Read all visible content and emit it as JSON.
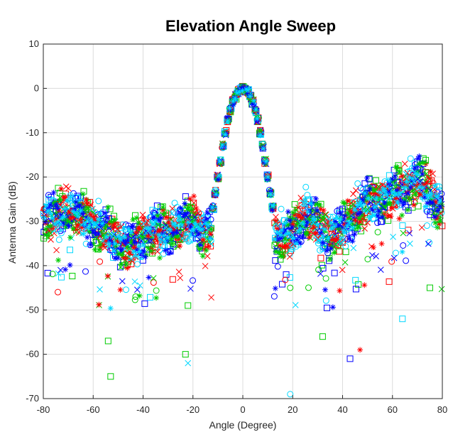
{
  "chart_data": {
    "type": "scatter",
    "title": "Elevation Angle Sweep",
    "xlabel": "Angle (Degree)",
    "ylabel": "Antenna Gain (dB)",
    "xlim": [
      -80,
      80
    ],
    "ylim": [
      -70,
      10
    ],
    "xticks": [
      -80,
      -60,
      -40,
      -20,
      0,
      20,
      40,
      60,
      80
    ],
    "yticks": [
      10,
      0,
      -10,
      -20,
      -30,
      -40,
      -50,
      -60,
      -70
    ],
    "grid": true,
    "legend": "none",
    "main_lobe": {
      "x": [
        -12,
        -10,
        -8,
        -6,
        -4,
        -2,
        0,
        2,
        4,
        6,
        8,
        10,
        12
      ],
      "y": [
        -27,
        -20,
        -13,
        -7,
        -3,
        -0.8,
        0,
        -0.8,
        -3,
        -7,
        -13,
        -20,
        -27
      ]
    },
    "sidelobe_envelope": {
      "x": [
        -80,
        -75,
        -70,
        -65,
        -60,
        -55,
        -50,
        -45,
        -40,
        -35,
        -30,
        -25,
        -20,
        -16,
        16,
        20,
        25,
        30,
        35,
        40,
        45,
        50,
        55,
        60,
        65,
        70,
        75,
        80
      ],
      "y": [
        -27,
        -26,
        -25,
        -26,
        -28,
        -30,
        -32,
        -33,
        -31,
        -29,
        -30,
        -28,
        -27,
        -30,
        -31,
        -30,
        -26,
        -28,
        -31,
        -29,
        -26,
        -23,
        -23,
        -21,
        -20,
        -18,
        -21,
        -25
      ]
    },
    "series": [
      {
        "marker": "square",
        "color": "#ff0000"
      },
      {
        "marker": "square",
        "color": "#00cc00"
      },
      {
        "marker": "square",
        "color": "#0000ff"
      },
      {
        "marker": "square",
        "color": "#00d8ff"
      },
      {
        "marker": "circle",
        "color": "#ff0000"
      },
      {
        "marker": "circle",
        "color": "#00cc00"
      },
      {
        "marker": "circle",
        "color": "#0000ff"
      },
      {
        "marker": "circle",
        "color": "#00d8ff"
      },
      {
        "marker": "x",
        "color": "#ff0000"
      },
      {
        "marker": "x",
        "color": "#00cc00"
      },
      {
        "marker": "x",
        "color": "#0000ff"
      },
      {
        "marker": "x",
        "color": "#00d8ff"
      },
      {
        "marker": "asterisk",
        "color": "#ff0000"
      },
      {
        "marker": "asterisk",
        "color": "#00cc00"
      },
      {
        "marker": "asterisk",
        "color": "#0000ff"
      },
      {
        "marker": "asterisk",
        "color": "#00d8ff"
      }
    ],
    "notable_outliers": [
      {
        "x": -53,
        "y": -65,
        "marker": "square",
        "color": "#00cc00"
      },
      {
        "x": -54,
        "y": -57,
        "marker": "square",
        "color": "#00cc00"
      },
      {
        "x": -23,
        "y": -60,
        "marker": "square",
        "color": "#00cc00"
      },
      {
        "x": -22,
        "y": -62,
        "marker": "x",
        "color": "#00d8ff"
      },
      {
        "x": 19,
        "y": -69,
        "marker": "circle",
        "color": "#00d8ff"
      },
      {
        "x": 43,
        "y": -61,
        "marker": "square",
        "color": "#0000ff"
      },
      {
        "x": 47,
        "y": -59,
        "marker": "asterisk",
        "color": "#ff0000"
      },
      {
        "x": 32,
        "y": -56,
        "marker": "square",
        "color": "#00cc00"
      },
      {
        "x": 64,
        "y": -52,
        "marker": "square",
        "color": "#00d8ff"
      },
      {
        "x": -22,
        "y": -49,
        "marker": "square",
        "color": "#00cc00"
      },
      {
        "x": -43,
        "y": -47,
        "marker": "circle",
        "color": "#00cc00"
      },
      {
        "x": 19,
        "y": -45,
        "marker": "circle",
        "color": "#00cc00"
      },
      {
        "x": 75,
        "y": -45,
        "marker": "square",
        "color": "#00cc00"
      }
    ]
  }
}
